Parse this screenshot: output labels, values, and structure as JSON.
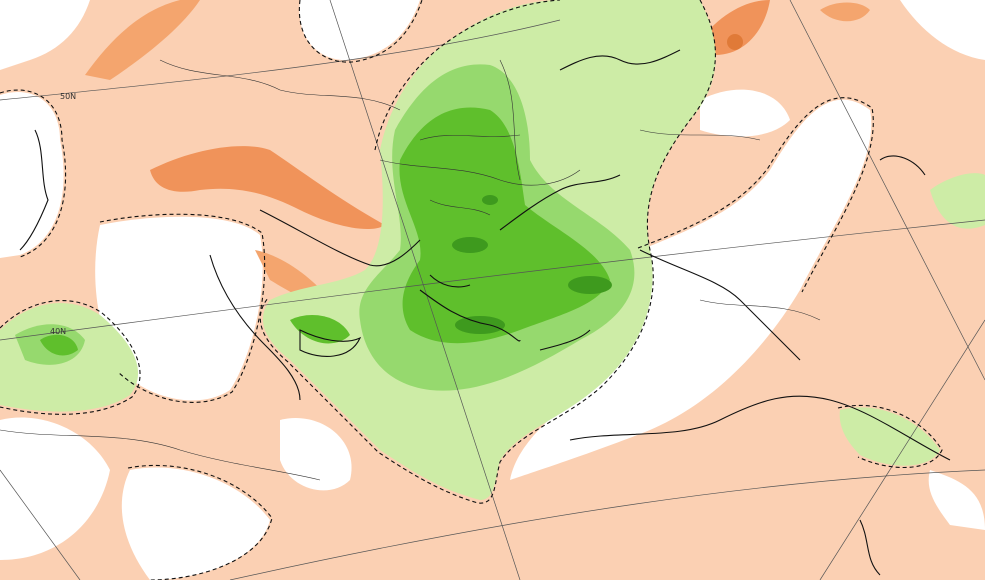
{
  "map": {
    "labels": [
      "50N",
      "40N"
    ]
  }
}
